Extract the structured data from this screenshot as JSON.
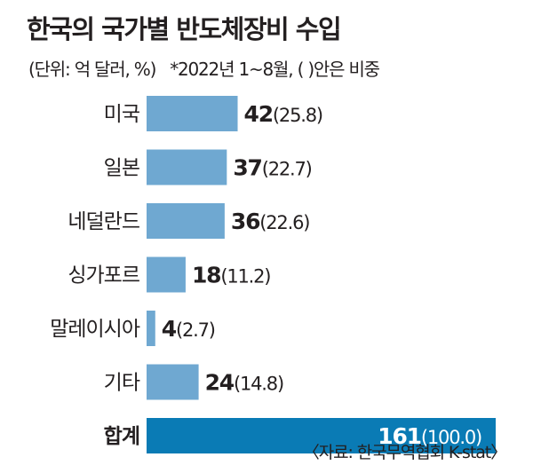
{
  "title": "한국의 국가별 반도체장비 수입",
  "subtitle": {
    "unit": "(단위: 억 달러, %)",
    "note": "*2022년 1~8월, ( )안은 비중"
  },
  "source": "〈자료: 한국무역협회 K-stat〉",
  "chart_data": {
    "type": "bar",
    "orientation": "horizontal",
    "categories": [
      "미국",
      "일본",
      "네덜란드",
      "싱가포르",
      "말레이시아",
      "기타",
      "합계"
    ],
    "values": [
      42,
      37,
      36,
      18,
      4,
      24,
      161
    ],
    "shares": [
      "25.8",
      "22.7",
      "22.6",
      "11.2",
      "2.7",
      "14.8",
      "100.0"
    ],
    "value_max": 161,
    "colors": {
      "bar": "#6fa8d1",
      "total_bar": "#0a7bb5",
      "total_label": "#ffffff",
      "text": "#231f20"
    }
  }
}
